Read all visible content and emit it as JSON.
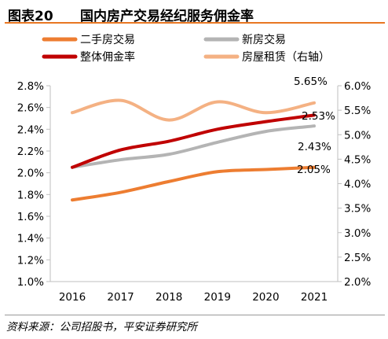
{
  "header": {
    "figure_number": "图表20",
    "title": "国内房产交易经纪服务佣金率"
  },
  "source_note": "资料来源：公司招股书，平安证券研究所",
  "chart_data": {
    "type": "line",
    "x": [
      "2016",
      "2017",
      "2018",
      "2019",
      "2020",
      "2021"
    ],
    "y_left": {
      "range": [
        1.0,
        2.8
      ],
      "ticks": [
        "1.0%",
        "1.2%",
        "1.4%",
        "1.6%",
        "1.8%",
        "2.0%",
        "2.2%",
        "2.4%",
        "2.6%",
        "2.8%"
      ]
    },
    "y_right": {
      "range": [
        2.0,
        6.0
      ],
      "ticks": [
        "2.0%",
        "2.5%",
        "3.0%",
        "3.5%",
        "4.0%",
        "4.5%",
        "5.0%",
        "5.5%",
        "6.0%"
      ]
    },
    "grid": false,
    "legend_position": "top",
    "series": [
      {
        "name": "二手房交易",
        "axis": "left",
        "color": "#ed7d31",
        "values": [
          1.75,
          1.82,
          1.92,
          2.01,
          2.03,
          2.05
        ],
        "end_label": "2.05%"
      },
      {
        "name": "新房交易",
        "axis": "left",
        "color": "#b4b4b4",
        "values": [
          2.05,
          2.12,
          2.17,
          2.28,
          2.38,
          2.43
        ],
        "end_label": "2.43%"
      },
      {
        "name": "整体佣金率",
        "axis": "left",
        "color": "#c00000",
        "values": [
          2.05,
          2.21,
          2.29,
          2.4,
          2.47,
          2.53
        ],
        "end_label": "2.53%"
      },
      {
        "name": "房屋租赁（右轴）",
        "axis": "right",
        "color": "#f4b183",
        "values": [
          5.45,
          5.7,
          5.3,
          5.67,
          5.45,
          5.65
        ],
        "end_label": "5.65%"
      }
    ]
  }
}
